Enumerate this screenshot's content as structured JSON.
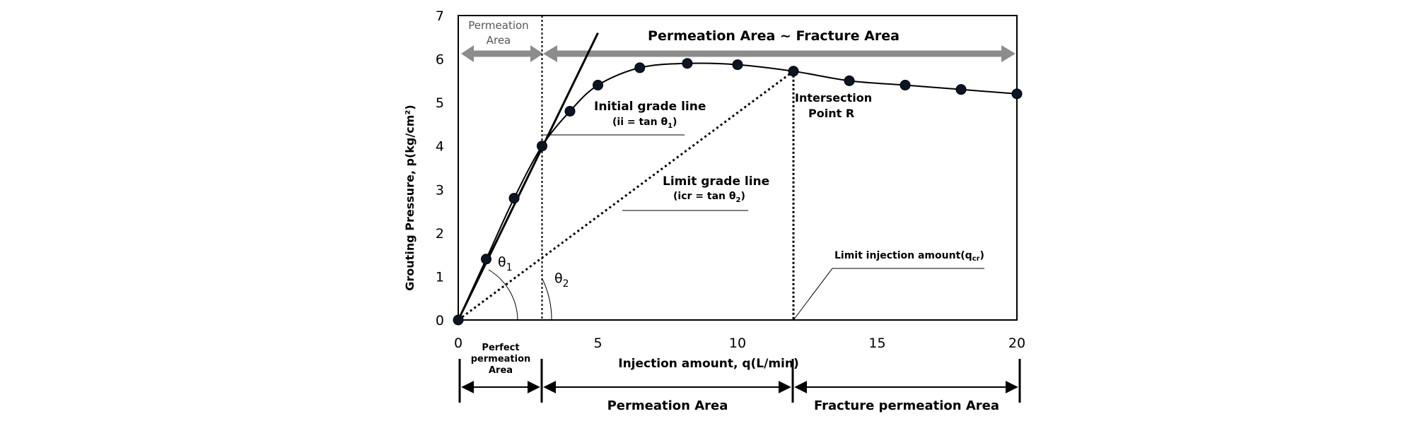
{
  "chart_data": {
    "type": "line",
    "xlabel": "Injection amount, q(L/min)",
    "ylabel": "Grouting Pressure,  p(kg/cm²)",
    "xlim": [
      0,
      20
    ],
    "ylim": [
      0,
      7
    ],
    "xticks": [
      0,
      5,
      10,
      15,
      20
    ],
    "yticks": [
      0,
      1,
      2,
      3,
      4,
      5,
      6,
      7
    ],
    "grid": false,
    "series": [
      {
        "marker": "circle",
        "x": [
          0,
          1,
          2,
          3,
          4,
          5,
          6.5,
          8.2,
          10,
          12,
          14,
          16,
          18,
          20
        ],
        "y": [
          0,
          1.4,
          2.8,
          4.0,
          4.8,
          5.4,
          5.8,
          5.9,
          5.87,
          5.72,
          5.5,
          5.4,
          5.3,
          5.2
        ]
      }
    ],
    "reference_lines": {
      "initial_grade": {
        "from": [
          0,
          0
        ],
        "to": [
          5.0,
          6.6
        ]
      },
      "limit_grade": {
        "from": [
          0,
          0
        ],
        "to": [
          12,
          5.72
        ]
      },
      "permeation_boundary_x": 3,
      "limit_injection_x": 12
    }
  },
  "annotations": {
    "top_left_region": [
      "Permeation",
      "Area"
    ],
    "top_right_region": "Permeation Area ~ Fracture Area",
    "initial_grade_title": "Initial grade line",
    "initial_grade_formula": "(ii = tan θ",
    "initial_grade_sub": "1",
    "limit_grade_title": "Limit grade line",
    "limit_grade_formula": "(icr = tan θ",
    "limit_grade_sub": "2",
    "intersection": [
      "Intersection",
      "Point R"
    ],
    "limit_injection": "Limit injection amount(q",
    "limit_injection_sub": "cr",
    "theta1": "θ",
    "theta1_sub": "1",
    "theta2": "θ",
    "theta2_sub": "2",
    "bottom_perfect": [
      "Perfect",
      "permeation",
      "Area"
    ],
    "bottom_permeation": "Permeation Area",
    "bottom_fracture": "Fracture permeation Area"
  },
  "colors": {
    "axis": "#000000",
    "marker": "#0a1626",
    "arrow_gray": "#8c8c8c",
    "region_label_gray": "#555555"
  }
}
